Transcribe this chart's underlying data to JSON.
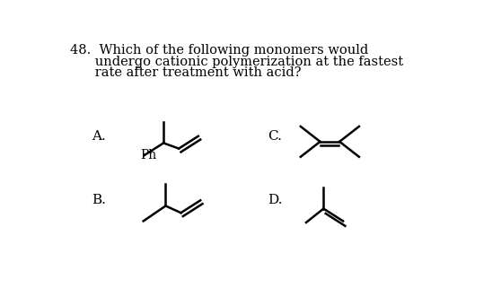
{
  "bg_color": "#ffffff",
  "text_color": "#000000",
  "line1": "48.  Which of the following monomers would",
  "line2": "      undergo cationic polymerization at the fastest",
  "line3": "      rate after treatment with acid?",
  "label_A": "A.",
  "label_B": "B.",
  "label_C": "C.",
  "label_D": "D.",
  "label_Ph": "Ph",
  "lw": 1.8
}
